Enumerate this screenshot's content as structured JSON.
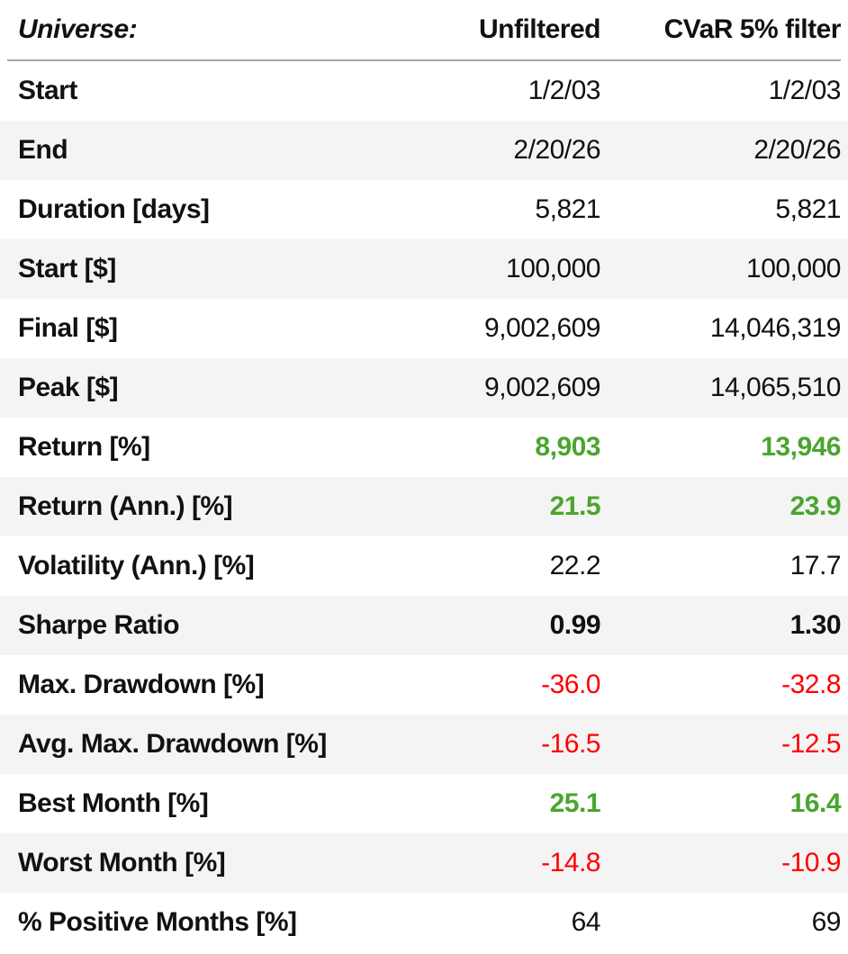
{
  "colors": {
    "positive": "#4aa52e",
    "negative": "#ff0000",
    "text": "#111111",
    "stripe": "#f4f4f4",
    "divider": "#a6a6a6"
  },
  "chart_data": {
    "type": "table",
    "title": "",
    "legend": null,
    "columns": [
      "Universe:",
      "Unfiltered",
      "CVaR 5% filter"
    ],
    "rows": [
      {
        "label": "Start",
        "values": [
          "1/2/03",
          "1/2/03"
        ],
        "style": "plain"
      },
      {
        "label": "End",
        "values": [
          "2/20/26",
          "2/20/26"
        ],
        "style": "plain"
      },
      {
        "label": "Duration [days]",
        "values": [
          "5,821",
          "5,821"
        ],
        "style": "plain"
      },
      {
        "label": "Start [$]",
        "values": [
          "100,000",
          "100,000"
        ],
        "style": "plain"
      },
      {
        "label": "Final [$]",
        "values": [
          "9,002,609",
          "14,046,319"
        ],
        "style": "plain"
      },
      {
        "label": "Peak [$]",
        "values": [
          "9,002,609",
          "14,065,510"
        ],
        "style": "plain"
      },
      {
        "label": "Return [%]",
        "values": [
          "8,903",
          "13,946"
        ],
        "style": "positive"
      },
      {
        "label": "Return (Ann.) [%]",
        "values": [
          "21.5",
          "23.9"
        ],
        "style": "positive"
      },
      {
        "label": "Volatility (Ann.) [%]",
        "values": [
          "22.2",
          "17.7"
        ],
        "style": "plain"
      },
      {
        "label": "Sharpe Ratio",
        "values": [
          "0.99",
          "1.30"
        ],
        "style": "bold"
      },
      {
        "label": "Max. Drawdown [%]",
        "values": [
          "-36.0",
          "-32.8"
        ],
        "style": "negative"
      },
      {
        "label": "Avg. Max. Drawdown [%]",
        "values": [
          "-16.5",
          "-12.5"
        ],
        "style": "negative"
      },
      {
        "label": "Best Month [%]",
        "values": [
          "25.1",
          "16.4"
        ],
        "style": "positive"
      },
      {
        "label": "Worst Month [%]",
        "values": [
          "-14.8",
          "-10.9"
        ],
        "style": "negative"
      },
      {
        "label": "% Positive Months [%]",
        "values": [
          "64",
          "69"
        ],
        "style": "plain"
      }
    ]
  }
}
